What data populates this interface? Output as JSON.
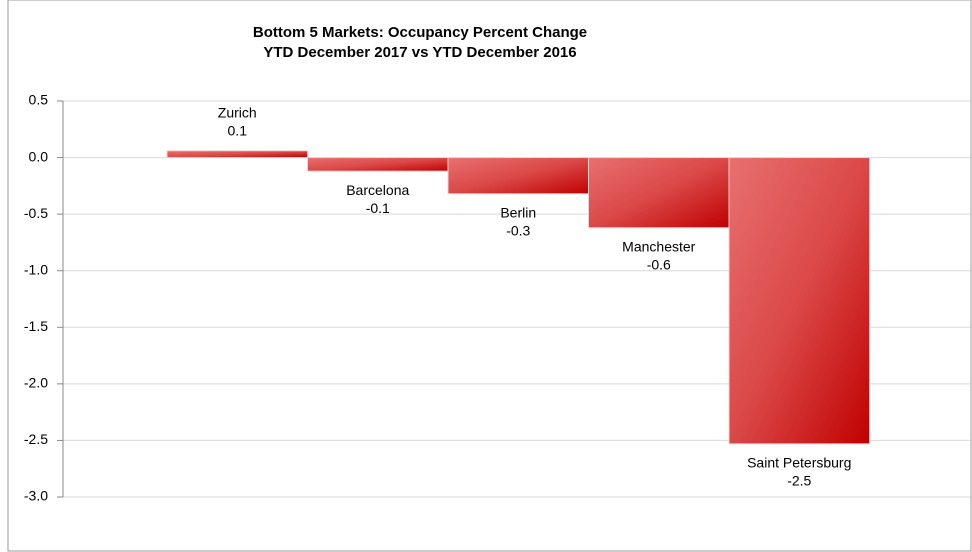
{
  "chart_data": {
    "type": "bar",
    "title": "Bottom 5 Markets: Occupancy Percent Change",
    "subtitle": "YTD December 2017 vs YTD December 2016",
    "categories": [
      "Zurich",
      "Barcelona",
      "Berlin",
      "Manchester",
      "Saint Petersburg"
    ],
    "values": [
      0.06,
      -0.12,
      -0.32,
      -0.62,
      -2.53
    ],
    "value_labels": [
      "0.1",
      "-0.1",
      "-0.3",
      "-0.6",
      "-2.5"
    ],
    "color": "#cc0000",
    "ylim": [
      -3,
      0.5
    ],
    "yticks": [
      0.5,
      {
        "value": 0,
        "label": "0.0"
      },
      -0.5,
      {
        "value": -1,
        "label": "-1.0"
      },
      -1.5,
      {
        "value": -2,
        "label": "-2.0"
      },
      -2.5,
      {
        "value": -3,
        "label": "-3.0"
      }
    ],
    "grid": true
  }
}
